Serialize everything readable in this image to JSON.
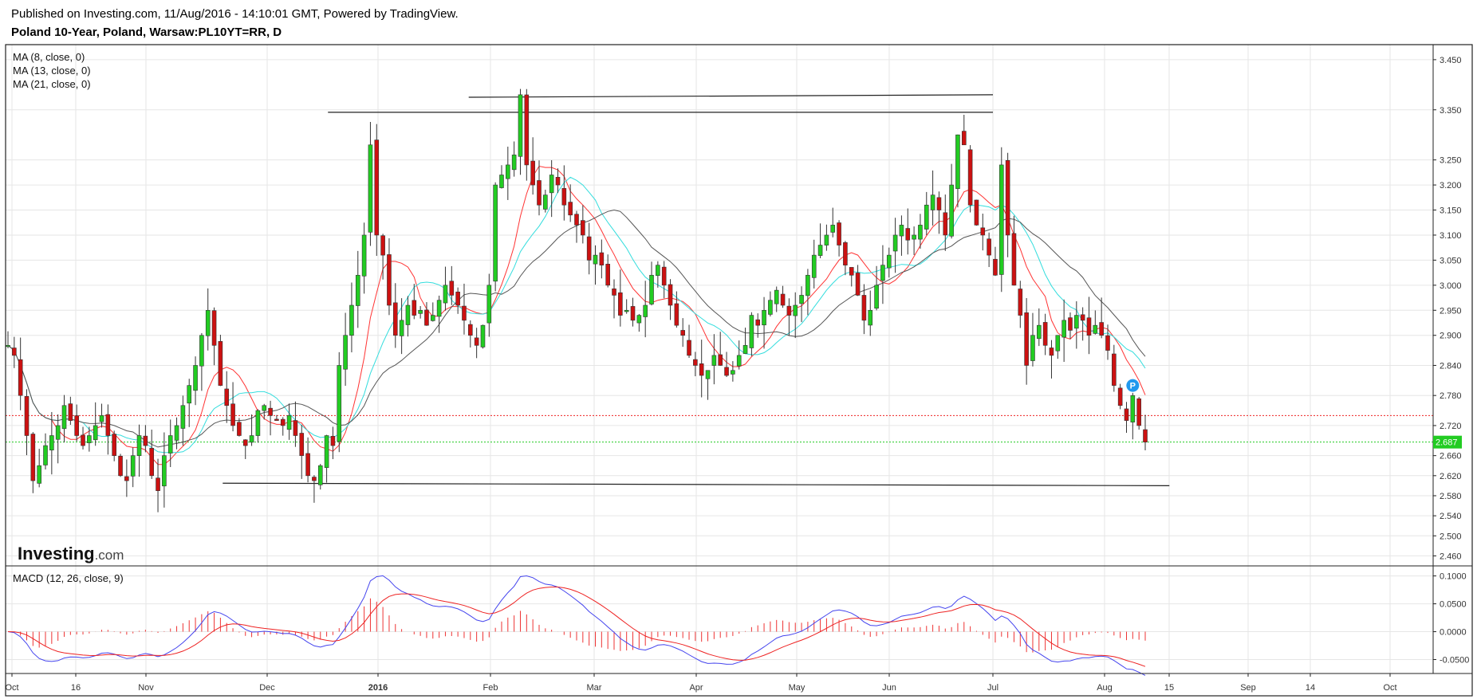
{
  "header": {
    "published": "Published on Investing.com, 11/Aug/2016 - 14:10:01 GMT, Powered by TradingView.",
    "instrument": "Poland 10-Year, Poland, Warsaw:PL10YT=RR, D"
  },
  "logo": {
    "main": "Investing",
    "suffix": ".com"
  },
  "colors": {
    "up": "#22cc22",
    "down": "#cc1111",
    "ma8": "#ff3333",
    "ma13": "#33dddd",
    "ma21": "#555555",
    "macd": "#4444ee",
    "signal": "#ee2222",
    "hist": "#ee3333",
    "resistance_line": "#ee2222",
    "last_line": "#22cc22",
    "grid": "#e6e6e6"
  },
  "chart_data": [
    {
      "type": "candlestick",
      "title": "",
      "legend": [
        "MA (8, close, 0)",
        "MA (13, close, 0)",
        "MA (21, close, 0)"
      ],
      "x_ticks": [
        "Oct",
        "16",
        "Nov",
        "Dec",
        "2016",
        "Feb",
        "Mar",
        "Apr",
        "May",
        "Jun",
        "Jul",
        "Aug",
        "15",
        "Sep",
        "14",
        "Oct"
      ],
      "y_ticks": [
        "3.450",
        "3.350",
        "3.250",
        "3.200",
        "3.150",
        "3.100",
        "3.050",
        "3.000",
        "2.950",
        "2.900",
        "2.840",
        "2.780",
        "2.720",
        "2.660",
        "2.620",
        "2.580",
        "2.540",
        "2.500",
        "2.460"
      ],
      "ylim": [
        2.44,
        3.48
      ],
      "last_price": "2.687",
      "last_value": 2.687,
      "reference_level": 2.74,
      "marker_label": "P",
      "grid": true,
      "legend_position": "top-left",
      "trend_lines": [
        {
          "from": [
            "2015-11-20",
            2.605
          ],
          "to": [
            "2016-08-15",
            2.6
          ]
        },
        {
          "from": [
            "2015-12-18",
            3.345
          ],
          "to": [
            "2016-07-01",
            3.345
          ]
        },
        {
          "from": [
            "2016-01-26",
            3.375
          ],
          "to": [
            "2016-07-01",
            3.38
          ]
        }
      ],
      "closes": [
        2.88,
        2.86,
        2.78,
        2.7,
        2.61,
        2.64,
        2.68,
        2.7,
        2.72,
        2.76,
        2.73,
        2.7,
        2.68,
        2.7,
        2.72,
        2.74,
        2.7,
        2.66,
        2.62,
        2.61,
        2.66,
        2.7,
        2.68,
        2.62,
        2.59,
        2.66,
        2.7,
        2.72,
        2.76,
        2.8,
        2.84,
        2.9,
        2.95,
        2.88,
        2.8,
        2.76,
        2.72,
        2.7,
        2.68,
        2.7,
        2.75,
        2.76,
        2.74,
        2.73,
        2.72,
        2.74,
        2.7,
        2.66,
        2.62,
        2.61,
        2.64,
        2.7,
        2.68,
        2.84,
        2.9,
        2.96,
        3.02,
        3.1,
        3.28,
        3.1,
        3.06,
        2.96,
        2.9,
        2.93,
        2.96,
        2.94,
        2.95,
        2.92,
        2.94,
        2.97,
        3,
        2.98,
        2.96,
        2.93,
        2.9,
        2.88,
        2.92,
        3,
        3.2,
        3.22,
        3.24,
        3.26,
        3.38,
        3.24,
        3.2,
        3.16,
        3.18,
        3.22,
        3.2,
        3.16,
        3.14,
        3.12,
        3.1,
        3.05,
        3.06,
        3.04,
        3,
        2.98,
        2.94,
        2.95,
        2.93,
        2.94,
        2.96,
        3.02,
        3.04,
        3,
        2.96,
        2.92,
        2.9,
        2.86,
        2.84,
        2.82,
        2.83,
        2.86,
        2.84,
        2.82,
        2.83,
        2.86,
        2.88,
        2.94,
        2.92,
        2.95,
        2.97,
        2.99,
        2.96,
        2.94,
        2.96,
        2.98,
        3.02,
        3.06,
        3.08,
        3.1,
        3.12,
        3.08,
        3.04,
        3.02,
        2.98,
        2.93,
        2.95,
        3,
        3.04,
        3.06,
        3.1,
        3.12,
        3.09,
        3.1,
        3.12,
        3.16,
        3.18,
        3.15,
        3.1,
        3.2,
        3.3,
        3.28,
        3.16,
        3.12,
        3.1,
        3.06,
        3.02,
        3.24,
        3.1,
        3,
        2.94,
        2.84,
        2.9,
        2.92,
        2.88,
        2.86,
        2.9,
        2.93,
        2.91,
        2.94,
        2.93,
        2.9,
        2.92,
        2.9,
        2.87,
        2.8,
        2.76,
        2.73,
        2.78,
        2.72,
        2.687
      ]
    },
    {
      "type": "line",
      "legend": [
        "MACD (12, 26, close, 9)"
      ],
      "y_ticks": [
        "0.1000",
        "0.0500",
        "0.0000",
        "-0.0500"
      ],
      "ylim": [
        -0.075,
        0.118
      ],
      "grid": true,
      "series_colors": [
        "#4444ee",
        "#ee2222"
      ],
      "histogram": true
    }
  ]
}
